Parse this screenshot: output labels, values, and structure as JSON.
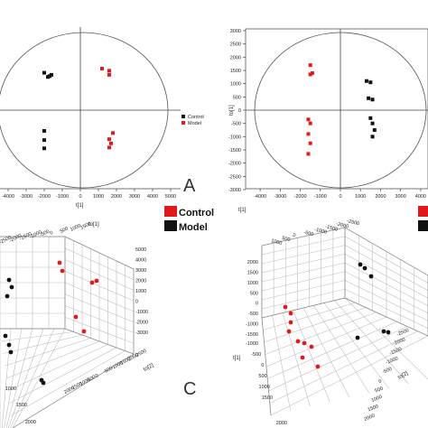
{
  "legend": {
    "items": [
      {
        "label": "Control",
        "color": "#e31a1c"
      },
      {
        "label": "Model",
        "color": "#111111"
      }
    ]
  },
  "panel_letters": {
    "a": "A",
    "c": "C"
  },
  "chart_data": [
    {
      "id": "pca_score_left",
      "type": "scatter",
      "xlabel": "t[1]",
      "ylabel": "",
      "xlim": [
        -5000,
        5000
      ],
      "ylim": [
        -2000,
        2000
      ],
      "x_ticks": [
        "-4000",
        "-3000",
        "-2000",
        "-1000",
        "0",
        "1000",
        "2000",
        "3000",
        "4000",
        "5000"
      ],
      "legend": [
        "Control",
        "Model"
      ],
      "series": [
        {
          "name": "Model",
          "color": "#111111",
          "points": [
            [
              -2000,
              900
            ],
            [
              -1800,
              800
            ],
            [
              -1700,
              820
            ],
            [
              -1600,
              850
            ],
            [
              -2000,
              -500
            ],
            [
              -2000,
              -720
            ],
            [
              -2000,
              -920
            ]
          ]
        },
        {
          "name": "Control",
          "color": "#e31a1c",
          "points": [
            [
              1200,
              1000
            ],
            [
              1600,
              950
            ],
            [
              1600,
              850
            ],
            [
              1800,
              -550
            ],
            [
              1600,
              -700
            ],
            [
              1700,
              -800
            ],
            [
              1600,
              -900
            ]
          ]
        }
      ]
    },
    {
      "id": "opls_score_right",
      "type": "scatter",
      "xlabel": "t[1]",
      "ylabel": "to[1]",
      "xlim": [
        -4500,
        4500
      ],
      "ylim": [
        -3000,
        3000
      ],
      "x_ticks": [
        "-4000",
        "-3000",
        "-2000",
        "-1000",
        "0",
        "1000",
        "2000",
        "3000",
        "4000"
      ],
      "y_ticks": [
        "3000",
        "2500",
        "2000",
        "1500",
        "1000",
        "500",
        "0",
        "-500",
        "-1000",
        "-1500",
        "-2000",
        "-2500",
        "-3000"
      ],
      "series": [
        {
          "name": "Control",
          "color": "#e31a1c",
          "points": [
            [
              -1500,
              1700
            ],
            [
              -1400,
              1400
            ],
            [
              -1500,
              1350
            ],
            [
              -1600,
              -350
            ],
            [
              -1500,
              -500
            ],
            [
              -1600,
              -900
            ],
            [
              -1500,
              -1250
            ],
            [
              -1600,
              -1650
            ]
          ]
        },
        {
          "name": "Model",
          "color": "#111111",
          "points": [
            [
              1300,
              1100
            ],
            [
              1500,
              1050
            ],
            [
              1400,
              450
            ],
            [
              1600,
              400
            ],
            [
              1500,
              -300
            ],
            [
              1600,
              -500
            ],
            [
              1700,
              -750
            ],
            [
              1600,
              -1000
            ]
          ]
        }
      ]
    },
    {
      "id": "score_3d_left",
      "type": "scatter3d",
      "axis_labels": [
        "to[1]",
        "to[2]"
      ],
      "top_ticks": [
        "-2500",
        "-2000",
        "-1500",
        "-1000",
        "-500",
        "0",
        "500",
        "1000",
        "1500"
      ],
      "right_v_ticks": [
        "5000",
        "4000",
        "3000",
        "2000",
        "1000",
        "0",
        "-1000",
        "-2000",
        "-3000"
      ],
      "depth_ticks": [
        "-2500",
        "-2000",
        "-1500",
        "-1000",
        "-500",
        "0",
        "500",
        "1000",
        "1500",
        "2000"
      ],
      "bottom_ticks": [
        "1000",
        "1500",
        "2000"
      ]
    },
    {
      "id": "score_3d_right",
      "type": "scatter3d",
      "axis_labels": [
        "t[1]",
        "to[2]"
      ],
      "top_ticks": [
        "-2500",
        "-2000",
        "-1500",
        "-1000",
        "-500",
        "0",
        "500",
        "1000"
      ],
      "left_v_ticks": [
        "2000",
        "1500",
        "1000",
        "500",
        "0",
        "-500",
        "-1000",
        "-1500"
      ],
      "left_depth_ticks": [
        "-1000",
        "-500",
        "0",
        "500",
        "1000",
        "1500"
      ],
      "right_depth_ticks": [
        "-2500",
        "-2000",
        "-1500",
        "-1000",
        "-500",
        "0",
        "500",
        "1000",
        "1500",
        "2000"
      ],
      "bottom_ticks": [
        "2000"
      ]
    }
  ]
}
